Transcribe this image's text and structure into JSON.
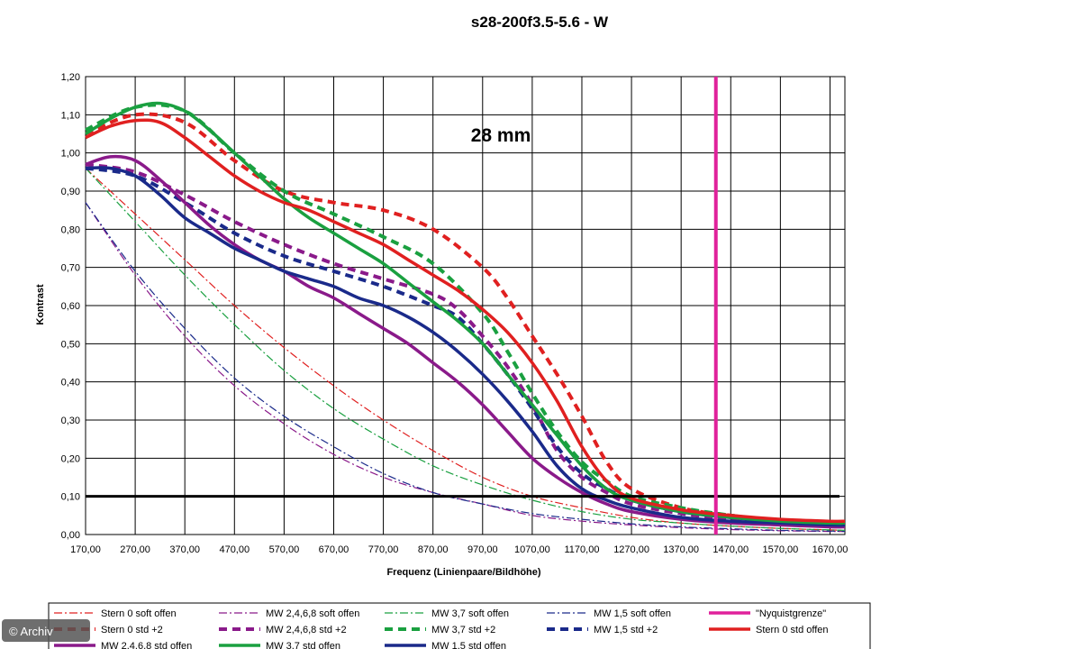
{
  "chart_data": {
    "type": "line",
    "title": "s28-200f3.5-5.6 - W",
    "annotation": "28 mm",
    "xlabel": "Frequenz (Linienpaare/Bildhöhe)",
    "ylabel": "Kontrast",
    "xlim": [
      170,
      1700
    ],
    "ylim": [
      0,
      1.2
    ],
    "x_ticks": [
      "170,00",
      "270,00",
      "370,00",
      "470,00",
      "570,00",
      "670,00",
      "770,00",
      "870,00",
      "970,00",
      "1070,00",
      "1170,00",
      "1270,00",
      "1370,00",
      "1470,00",
      "1570,00",
      "1670,00"
    ],
    "y_ticks": [
      "0,00",
      "0,10",
      "0,20",
      "0,30",
      "0,40",
      "0,50",
      "0,60",
      "0,70",
      "0,80",
      "0,90",
      "1,00",
      "1,10",
      "1,20"
    ],
    "grid": true,
    "legend_position": "bottom",
    "reference_line": {
      "y": 0.1,
      "color": "#000000"
    },
    "nyquist": {
      "name": "\"Nyquistgrenze\"",
      "x": 1440,
      "color": "#e0219b"
    },
    "series": [
      {
        "name": "Stern 0 soft offen",
        "color": "#e02020",
        "style": "dashdot-thin",
        "x": [
          170,
          270,
          370,
          470,
          570,
          670,
          770,
          870,
          970,
          1070,
          1170,
          1270,
          1370,
          1470,
          1570,
          1670,
          1700
        ],
        "y": [
          0.96,
          0.84,
          0.72,
          0.6,
          0.49,
          0.39,
          0.3,
          0.22,
          0.15,
          0.1,
          0.07,
          0.045,
          0.03,
          0.022,
          0.016,
          0.012,
          0.011
        ]
      },
      {
        "name": "MW 2,4,6,8 soft offen",
        "color": "#8a1a8a",
        "style": "dashdot-thin",
        "x": [
          170,
          270,
          370,
          470,
          570,
          670,
          770,
          870,
          970,
          1070,
          1170,
          1270,
          1370,
          1470,
          1570,
          1670,
          1700
        ],
        "y": [
          0.87,
          0.68,
          0.52,
          0.39,
          0.29,
          0.21,
          0.15,
          0.11,
          0.08,
          0.05,
          0.035,
          0.025,
          0.018,
          0.013,
          0.01,
          0.008,
          0.008
        ]
      },
      {
        "name": "MW 3,7 soft offen",
        "color": "#1aa040",
        "style": "dashdot-thin",
        "x": [
          170,
          270,
          370,
          470,
          570,
          670,
          770,
          870,
          970,
          1070,
          1170,
          1270,
          1370,
          1470,
          1570,
          1670,
          1700
        ],
        "y": [
          0.96,
          0.82,
          0.68,
          0.55,
          0.43,
          0.33,
          0.25,
          0.18,
          0.13,
          0.09,
          0.06,
          0.04,
          0.03,
          0.022,
          0.016,
          0.012,
          0.011
        ]
      },
      {
        "name": "MW 1,5 soft offen",
        "color": "#1a2a8a",
        "style": "dashdot-thin",
        "x": [
          170,
          270,
          370,
          470,
          570,
          670,
          770,
          870,
          970,
          1070,
          1170,
          1270,
          1370,
          1470,
          1570,
          1670,
          1700
        ],
        "y": [
          0.87,
          0.69,
          0.54,
          0.41,
          0.31,
          0.23,
          0.16,
          0.11,
          0.08,
          0.055,
          0.04,
          0.028,
          0.02,
          0.015,
          0.011,
          0.009,
          0.008
        ]
      },
      {
        "name": "Stern 0 std +2",
        "color": "#e02020",
        "style": "dash-thick",
        "x": [
          170,
          270,
          370,
          470,
          570,
          670,
          770,
          870,
          970,
          1020,
          1070,
          1120,
          1170,
          1220,
          1270,
          1370,
          1470,
          1570,
          1670,
          1700
        ],
        "y": [
          1.05,
          1.1,
          1.08,
          0.98,
          0.9,
          0.87,
          0.85,
          0.8,
          0.7,
          0.62,
          0.52,
          0.42,
          0.31,
          0.19,
          0.12,
          0.07,
          0.05,
          0.035,
          0.03,
          0.028
        ]
      },
      {
        "name": "MW 2,4,6,8 std +2",
        "color": "#8a1a8a",
        "style": "dash-thick",
        "x": [
          170,
          270,
          370,
          470,
          570,
          670,
          770,
          870,
          920,
          970,
          1020,
          1070,
          1120,
          1170,
          1220,
          1270,
          1370,
          1470,
          1570,
          1670,
          1700
        ],
        "y": [
          0.97,
          0.95,
          0.89,
          0.82,
          0.76,
          0.71,
          0.67,
          0.63,
          0.59,
          0.52,
          0.44,
          0.34,
          0.22,
          0.15,
          0.11,
          0.08,
          0.055,
          0.04,
          0.03,
          0.028,
          0.028
        ]
      },
      {
        "name": "MW 3,7 std +2",
        "color": "#1aa040",
        "style": "dash-thick",
        "x": [
          170,
          270,
          370,
          470,
          570,
          670,
          770,
          870,
          970,
          1020,
          1070,
          1120,
          1170,
          1220,
          1270,
          1370,
          1470,
          1570,
          1670,
          1700
        ],
        "y": [
          1.06,
          1.12,
          1.11,
          1.0,
          0.9,
          0.84,
          0.78,
          0.71,
          0.58,
          0.48,
          0.37,
          0.27,
          0.19,
          0.14,
          0.1,
          0.07,
          0.05,
          0.035,
          0.03,
          0.028
        ]
      },
      {
        "name": "MW 1,5 std +2",
        "color": "#1a2a8a",
        "style": "dash-thick",
        "x": [
          170,
          270,
          370,
          470,
          570,
          670,
          770,
          870,
          920,
          970,
          1020,
          1070,
          1120,
          1170,
          1220,
          1270,
          1370,
          1470,
          1570,
          1670,
          1700
        ],
        "y": [
          0.96,
          0.94,
          0.87,
          0.79,
          0.73,
          0.69,
          0.65,
          0.6,
          0.57,
          0.5,
          0.42,
          0.33,
          0.23,
          0.16,
          0.12,
          0.09,
          0.06,
          0.045,
          0.035,
          0.03,
          0.028
        ]
      },
      {
        "name": "Stern 0 std offen",
        "color": "#e02020",
        "style": "solid-thick",
        "x": [
          170,
          220,
          270,
          320,
          370,
          420,
          470,
          520,
          570,
          620,
          670,
          720,
          770,
          820,
          870,
          920,
          970,
          1020,
          1070,
          1120,
          1170,
          1220,
          1270,
          1370,
          1470,
          1570,
          1670,
          1700
        ],
        "y": [
          1.04,
          1.07,
          1.085,
          1.08,
          1.04,
          0.99,
          0.94,
          0.9,
          0.87,
          0.85,
          0.82,
          0.79,
          0.76,
          0.72,
          0.68,
          0.64,
          0.59,
          0.53,
          0.45,
          0.35,
          0.23,
          0.14,
          0.095,
          0.065,
          0.05,
          0.04,
          0.035,
          0.035
        ]
      },
      {
        "name": "MW 2,4,6,8 std offen",
        "color": "#8a1a8a",
        "style": "solid-thick",
        "x": [
          170,
          220,
          270,
          320,
          370,
          420,
          470,
          520,
          570,
          620,
          670,
          720,
          770,
          820,
          870,
          920,
          970,
          1020,
          1070,
          1120,
          1170,
          1220,
          1270,
          1370,
          1470,
          1570,
          1670,
          1700
        ],
        "y": [
          0.97,
          0.99,
          0.98,
          0.93,
          0.87,
          0.81,
          0.76,
          0.72,
          0.69,
          0.65,
          0.62,
          0.58,
          0.54,
          0.5,
          0.45,
          0.4,
          0.34,
          0.27,
          0.2,
          0.15,
          0.11,
          0.08,
          0.06,
          0.04,
          0.03,
          0.025,
          0.02,
          0.02
        ]
      },
      {
        "name": "MW 3,7 std offen",
        "color": "#1aa040",
        "style": "solid-thick",
        "x": [
          170,
          220,
          270,
          320,
          370,
          420,
          470,
          520,
          570,
          620,
          670,
          720,
          770,
          820,
          870,
          920,
          970,
          1020,
          1070,
          1120,
          1170,
          1220,
          1270,
          1370,
          1470,
          1570,
          1670,
          1700
        ],
        "y": [
          1.05,
          1.09,
          1.12,
          1.13,
          1.11,
          1.06,
          1.0,
          0.94,
          0.88,
          0.83,
          0.79,
          0.75,
          0.71,
          0.66,
          0.61,
          0.56,
          0.5,
          0.42,
          0.34,
          0.26,
          0.18,
          0.12,
          0.09,
          0.06,
          0.045,
          0.035,
          0.03,
          0.03
        ]
      },
      {
        "name": "MW 1,5 std offen",
        "color": "#1a2a8a",
        "style": "solid-thick",
        "x": [
          170,
          220,
          270,
          320,
          370,
          420,
          470,
          520,
          570,
          620,
          670,
          720,
          770,
          820,
          870,
          920,
          970,
          1020,
          1070,
          1120,
          1170,
          1220,
          1270,
          1370,
          1470,
          1570,
          1670,
          1700
        ],
        "y": [
          0.96,
          0.96,
          0.94,
          0.89,
          0.83,
          0.79,
          0.75,
          0.72,
          0.69,
          0.67,
          0.65,
          0.62,
          0.6,
          0.57,
          0.53,
          0.48,
          0.42,
          0.35,
          0.27,
          0.18,
          0.12,
          0.09,
          0.07,
          0.045,
          0.035,
          0.03,
          0.025,
          0.025
        ]
      }
    ]
  },
  "copyright": "© Archiv"
}
